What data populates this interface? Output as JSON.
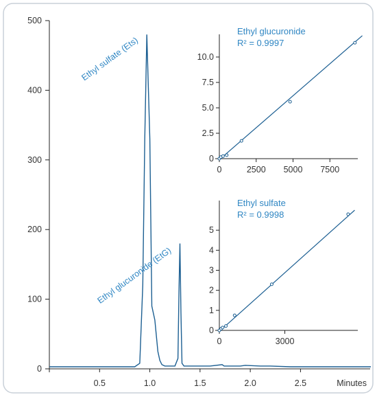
{
  "colors": {
    "frame_border": "#c9d0d8",
    "axis": "#222222",
    "trace": "#1c5f92",
    "label": "#2f86c3",
    "fit_line": "#1c5f92",
    "marker": "#1c5f92"
  },
  "chart_data": [
    {
      "type": "line",
      "title": "",
      "xlabel": "Minutes",
      "ylabel": "",
      "xlim": [
        0,
        3.2
      ],
      "ylim": [
        0,
        500
      ],
      "x_ticks": [
        0.5,
        1.0,
        1.5,
        2.0,
        2.5
      ],
      "x_tick_labels": [
        "0.5",
        "1.0",
        "1.5",
        "2.0",
        "2.5"
      ],
      "y_ticks": [
        0,
        100,
        200,
        300,
        400,
        500
      ],
      "y_tick_labels": [
        "0",
        "100",
        "200",
        "300",
        "400",
        "500"
      ],
      "grid": false,
      "series": [
        {
          "x": [
            0.0,
            0.5,
            0.85,
            0.9,
            0.93,
            0.95,
            0.97,
            1.0,
            1.02,
            1.05,
            1.08,
            1.1,
            1.12,
            1.15,
            1.2,
            1.25,
            1.28,
            1.29,
            1.3,
            1.31,
            1.32,
            1.34,
            1.4,
            1.6,
            1.72,
            1.74,
            1.9,
            1.95,
            2.1,
            2.2,
            2.4,
            2.6,
            2.8,
            3.0,
            3.2
          ],
          "y": [
            3,
            3,
            3,
            8,
            120,
            330,
            480,
            330,
            90,
            70,
            25,
            12,
            6,
            4,
            4,
            4,
            15,
            110,
            180,
            80,
            8,
            4,
            4,
            4,
            6,
            4,
            4,
            5,
            4,
            4,
            3,
            3,
            3,
            3,
            3
          ]
        }
      ],
      "annotations": [
        {
          "text": "Ethyl sulfate (Ets)",
          "x": 0.97,
          "y": 480
        },
        {
          "text": "Ethyl glucuronide (EtG)",
          "x": 1.3,
          "y": 180
        }
      ]
    },
    {
      "type": "scatter",
      "title": "Ethyl glucuronide",
      "subtitle": "R² = 0.9997",
      "xlim": [
        0,
        10000
      ],
      "ylim": [
        0,
        12.5
      ],
      "x_ticks": [
        0,
        2500,
        5000,
        7500
      ],
      "x_tick_labels": [
        "0",
        "2500",
        "5000",
        "7500"
      ],
      "y_ticks": [
        0,
        2.5,
        5.0,
        7.5,
        10.0
      ],
      "y_tick_labels": [
        "0",
        "2.5",
        "5.0",
        "7.5",
        "10.0"
      ],
      "points": {
        "x": [
          0,
          100,
          250,
          500,
          1500,
          4800,
          9200
        ],
        "y": [
          0.0,
          0.15,
          0.25,
          0.35,
          1.75,
          5.6,
          11.4
        ]
      },
      "fit_line": {
        "x": [
          0,
          9700
        ],
        "y": [
          -0.1,
          12.1
        ]
      }
    },
    {
      "type": "scatter",
      "title": "Ethyl sulfate",
      "subtitle": "R² = 0.9998",
      "xlim": [
        0,
        6500
      ],
      "ylim": [
        0,
        6.0
      ],
      "x_ticks": [
        0,
        3000
      ],
      "x_tick_labels": [
        "0",
        "3000"
      ],
      "y_ticks": [
        0,
        1,
        2,
        3,
        4,
        5
      ],
      "y_tick_labels": [
        "0",
        "1",
        "2",
        "3",
        "4",
        "5"
      ],
      "points": {
        "x": [
          0,
          80,
          150,
          300,
          700,
          2400,
          5900
        ],
        "y": [
          0.0,
          0.08,
          0.14,
          0.22,
          0.75,
          2.3,
          5.8
        ]
      },
      "fit_line": {
        "x": [
          0,
          6200
        ],
        "y": [
          -0.05,
          6.0
        ]
      }
    }
  ]
}
